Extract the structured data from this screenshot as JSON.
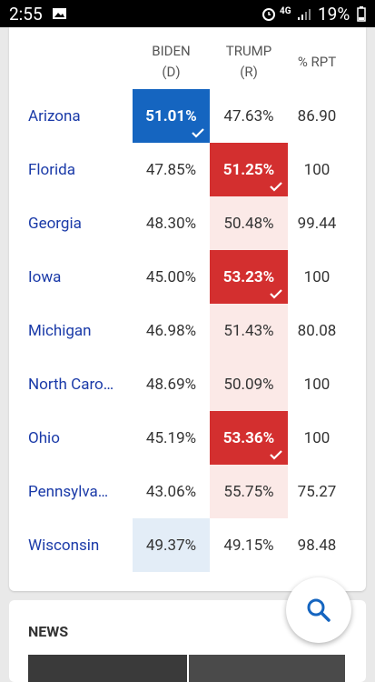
{
  "status_bar": {
    "time": "2:55",
    "network": "4G",
    "battery": "19%"
  },
  "table": {
    "headers": [
      {
        "name": "BIDEN",
        "party": "(D)"
      },
      {
        "name": "TRUMP",
        "party": "(R)"
      },
      {
        "name": "% RPT"
      }
    ],
    "rows": [
      [
        "Arizona",
        "51.01%",
        "47.63%",
        "86.90"
      ],
      [
        "Florida",
        "47.85%",
        "51.25%",
        "100"
      ],
      [
        "Georgia",
        "48.30%",
        "50.48%",
        "99.44"
      ],
      [
        "Iowa",
        "45.00%",
        "53.23%",
        "100"
      ],
      [
        "Michigan",
        "46.98%",
        "51.43%",
        "80.08"
      ],
      [
        "North Caro…",
        "48.69%",
        "50.09%",
        "100"
      ],
      [
        "Ohio",
        "45.19%",
        "53.36%",
        "100"
      ],
      [
        "Pennsylva…",
        "43.06%",
        "55.75%",
        "75.27"
      ],
      [
        "Wisconsin",
        "49.37%",
        "49.15%",
        "98.48"
      ]
    ]
  },
  "news": {
    "title": "NEWS"
  }
}
